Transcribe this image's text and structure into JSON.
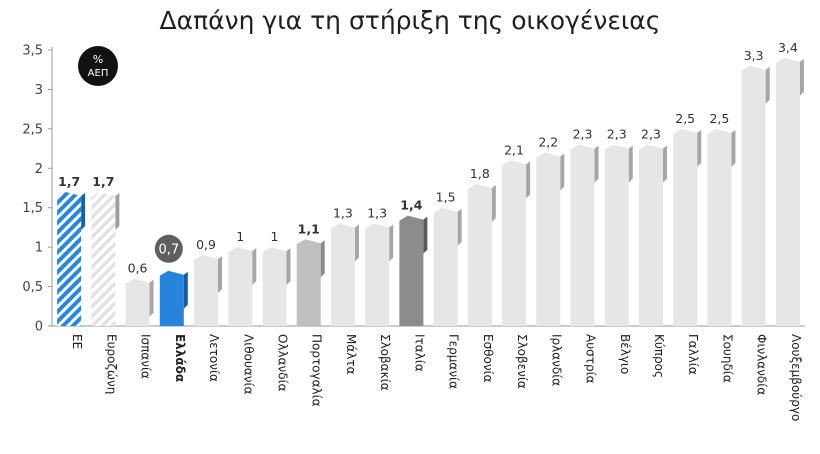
{
  "chart_data": {
    "type": "bar",
    "title": "Δαπάνη για τη στήριξη της οικογένειας",
    "unit_badge": {
      "line1": "%",
      "line2": "ΑΕΠ"
    },
    "ylim": [
      0,
      3.5
    ],
    "yticks": [
      "0",
      "0,5",
      "1",
      "1,5",
      "2",
      "2,5",
      "3",
      "3,5"
    ],
    "grid": false,
    "categories": [
      "ΕΕ",
      "Ευροζώνη",
      "Ισπανία",
      "Ελλάδα",
      "Λετονία",
      "Λιθουανία",
      "Ολλανδία",
      "Πορτογαλία",
      "Μάλτα",
      "Σλοβακία",
      "Ιταλία",
      "Γερμανία",
      "Εσθονία",
      "Σλοβενία",
      "Ιρλανδία",
      "Αυστρία",
      "Βέλγιο",
      "Κύπρος",
      "Γαλλία",
      "Σουηδία",
      "Φινλανδία",
      "Λουξεμβούργο"
    ],
    "values": [
      1.7,
      1.7,
      0.6,
      0.7,
      0.9,
      1.0,
      1.0,
      1.1,
      1.3,
      1.3,
      1.4,
      1.5,
      1.8,
      2.1,
      2.2,
      2.3,
      2.3,
      2.3,
      2.5,
      2.5,
      3.3,
      3.4
    ],
    "value_labels": [
      "1,7",
      "1,7",
      "0,6",
      "0,7",
      "0,9",
      "1",
      "1",
      "1,1",
      "1,3",
      "1,3",
      "1,4",
      "1,5",
      "1,8",
      "2,1",
      "2,2",
      "2,3",
      "2,3",
      "2,3",
      "2,5",
      "2,5",
      "3,3",
      "3,4"
    ],
    "highlight": "Ελλάδα",
    "colors": {
      "eu": "#2a88d8",
      "eurozone": "#e2e2e2",
      "greece": "#2684dc",
      "greece_badge": "#5f5f5f",
      "portugal": "#bfbfbf",
      "italy": "#8c8c8c",
      "default": "#e6e6e6",
      "badge": "#111111"
    }
  }
}
